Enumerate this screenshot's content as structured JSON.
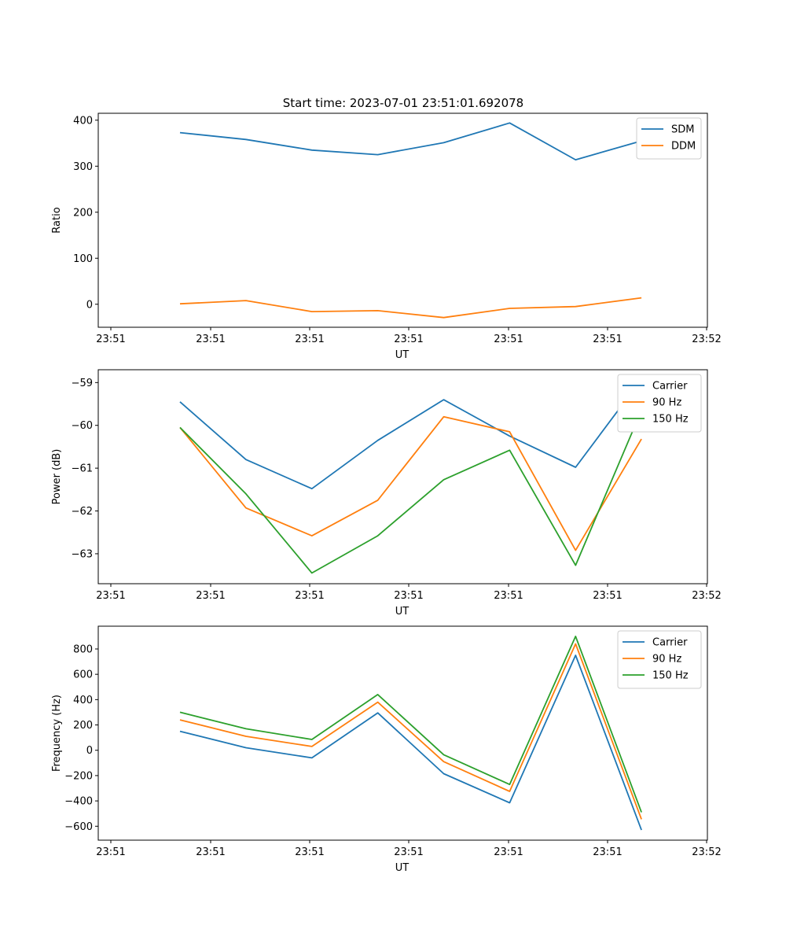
{
  "figure": {
    "title": "Start time: 2023-07-01 23:51:01.692078"
  },
  "chart_data": [
    {
      "type": "line",
      "xlabel": "UT",
      "ylabel": "Ratio",
      "x_tick_labels": [
        "23:51",
        "23:51",
        "23:51",
        "23:51",
        "23:51",
        "23:51",
        "23:52"
      ],
      "x": [
        0.5,
        1,
        1.5,
        2,
        2.5,
        3,
        3.5,
        4
      ],
      "xlim": [
        -0.12,
        4.5
      ],
      "ylim": [
        -50,
        415
      ],
      "yticks": [
        0,
        100,
        200,
        300,
        400
      ],
      "ytick_labels": [
        "0",
        "100",
        "200",
        "300",
        "400"
      ],
      "legend": "top-right",
      "series": [
        {
          "name": "SDM",
          "color": "#1f77b4",
          "values": [
            373,
            358,
            335,
            325,
            351,
            394,
            314,
            355
          ]
        },
        {
          "name": "DDM",
          "color": "#ff7f0e",
          "values": [
            1,
            8,
            -16,
            -14,
            -29,
            -9,
            -5,
            14
          ]
        }
      ]
    },
    {
      "type": "line",
      "xlabel": "UT",
      "ylabel": "Power (dB)",
      "x_tick_labels": [
        "23:51",
        "23:51",
        "23:51",
        "23:51",
        "23:51",
        "23:51",
        "23:52"
      ],
      "x": [
        0.5,
        1,
        1.5,
        2,
        2.5,
        3,
        3.5,
        4
      ],
      "xlim": [
        -0.12,
        4.5
      ],
      "ylim": [
        -63.7,
        -58.7
      ],
      "yticks": [
        -63,
        -62,
        -61,
        -60,
        -59
      ],
      "ytick_labels": [
        "−63",
        "−62",
        "−61",
        "−60",
        "−59"
      ],
      "legend": "top-right",
      "series": [
        {
          "name": "Carrier",
          "color": "#1f77b4",
          "values": [
            -59.45,
            -60.8,
            -61.48,
            -60.35,
            -59.4,
            -60.25,
            -60.98,
            -58.92
          ]
        },
        {
          "name": "90 Hz",
          "color": "#ff7f0e",
          "values": [
            -60.05,
            -61.93,
            -62.58,
            -61.75,
            -59.8,
            -60.15,
            -62.92,
            -60.32
          ]
        },
        {
          "name": "150 Hz",
          "color": "#2ca02c",
          "values": [
            -60.05,
            -61.6,
            -63.45,
            -62.58,
            -61.27,
            -60.58,
            -63.27,
            -59.65
          ]
        }
      ]
    },
    {
      "type": "line",
      "xlabel": "UT",
      "ylabel": "Frequency (Hz)",
      "x_tick_labels": [
        "23:51",
        "23:51",
        "23:51",
        "23:51",
        "23:51",
        "23:51",
        "23:52"
      ],
      "x": [
        0.5,
        1,
        1.5,
        2,
        2.5,
        3,
        3.5,
        4
      ],
      "xlim": [
        -0.12,
        4.5
      ],
      "ylim": [
        -710,
        980
      ],
      "yticks": [
        -600,
        -400,
        -200,
        0,
        200,
        400,
        600,
        800
      ],
      "ytick_labels": [
        "−600",
        "−400",
        "−200",
        "0",
        "200",
        "400",
        "600",
        "800"
      ],
      "legend": "top-right",
      "series": [
        {
          "name": "Carrier",
          "color": "#1f77b4",
          "values": [
            150,
            20,
            -60,
            295,
            -185,
            -415,
            750,
            -630
          ]
        },
        {
          "name": "90 Hz",
          "color": "#ff7f0e",
          "values": [
            240,
            110,
            30,
            380,
            -90,
            -325,
            840,
            -545
          ]
        },
        {
          "name": "150 Hz",
          "color": "#2ca02c",
          "values": [
            300,
            170,
            85,
            440,
            -35,
            -270,
            900,
            -490
          ]
        }
      ]
    }
  ]
}
